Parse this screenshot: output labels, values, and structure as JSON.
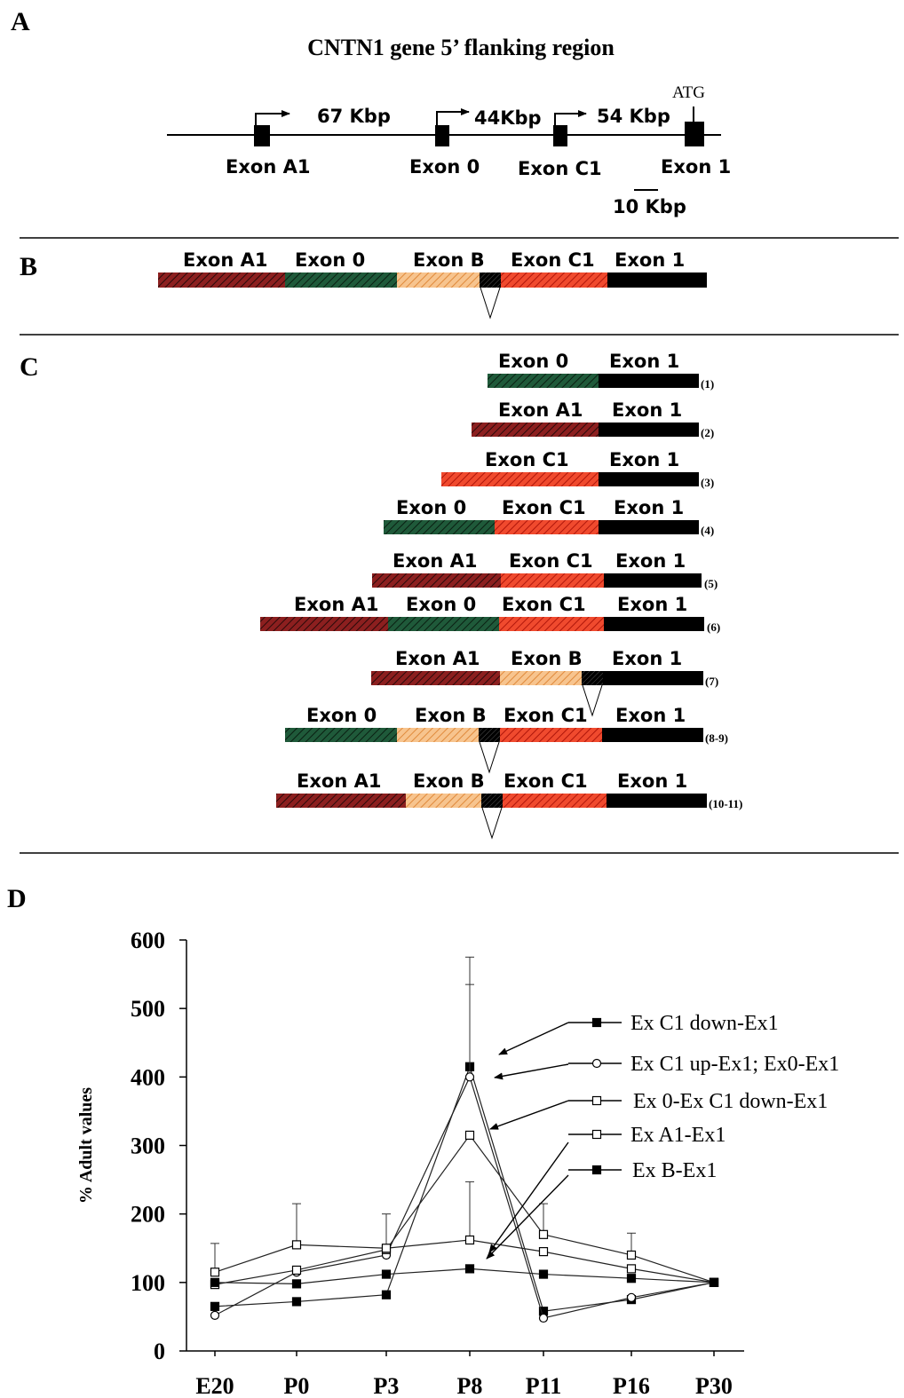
{
  "panel_labels": {
    "a": "A",
    "b": "B",
    "c": "C",
    "d": "D"
  },
  "panel_a": {
    "title": "CNTN1 gene 5’ flanking region",
    "exons": [
      "Exon A1",
      "Exon 0",
      "Exon C1",
      "Exon 1"
    ],
    "distances": [
      "67 Kbp",
      "44Kbp",
      "54 Kbp"
    ],
    "atg": "ATG",
    "scale": "10 Kbp"
  },
  "exon_names": {
    "A1": "Exon A1",
    "E0": "Exon 0",
    "B": "Exon B",
    "C1": "Exon C1",
    "E1": "Exon 1"
  },
  "exon_colors": {
    "A1": "#8c1f1f",
    "E0": "#1f5a3a",
    "B": "#f0a766",
    "C1": "#e8321e",
    "E1": "#000000"
  },
  "panel_c_indices": [
    "(1)",
    "(2)",
    "(3)",
    "(4)",
    "(5)",
    "(6)",
    "(7)",
    "(8-9)",
    "(10-11)"
  ],
  "chart_data": {
    "type": "line",
    "ylabel": "% Adult values",
    "categories": [
      "E20",
      "P0",
      "P3",
      "P8",
      "P11",
      "P16",
      "P30"
    ],
    "ylim": [
      0,
      600
    ],
    "yticks": [
      0,
      100,
      200,
      300,
      400,
      500,
      600
    ],
    "series": [
      {
        "name": "Ex C1 down-Ex1",
        "marker": "filled-square",
        "values": [
          65,
          72,
          82,
          415,
          58,
          75,
          100
        ],
        "errors": [
          0,
          0,
          0,
          120,
          0,
          0,
          0
        ]
      },
      {
        "name": "Ex C1 up-Ex1; Ex0-Ex1",
        "marker": "open-circle",
        "values": [
          52,
          115,
          140,
          400,
          48,
          78,
          100
        ],
        "errors": [
          0,
          0,
          0,
          175,
          0,
          0,
          0
        ]
      },
      {
        "name": "Ex 0-Ex C1 down-Ex1",
        "marker": "open-square",
        "values": [
          97,
          118,
          148,
          315,
          170,
          140,
          100
        ],
        "errors": [
          0,
          0,
          0,
          0,
          45,
          32,
          0
        ]
      },
      {
        "name": "Ex A1-Ex1",
        "marker": "open-square",
        "values": [
          115,
          155,
          150,
          162,
          145,
          120,
          100
        ],
        "errors": [
          42,
          60,
          50,
          85,
          0,
          0,
          0
        ]
      },
      {
        "name": "Ex B-Ex1",
        "marker": "filled-square",
        "values": [
          100,
          98,
          112,
          120,
          112,
          106,
          100
        ],
        "errors": [
          0,
          0,
          0,
          0,
          0,
          0,
          0
        ]
      }
    ]
  }
}
